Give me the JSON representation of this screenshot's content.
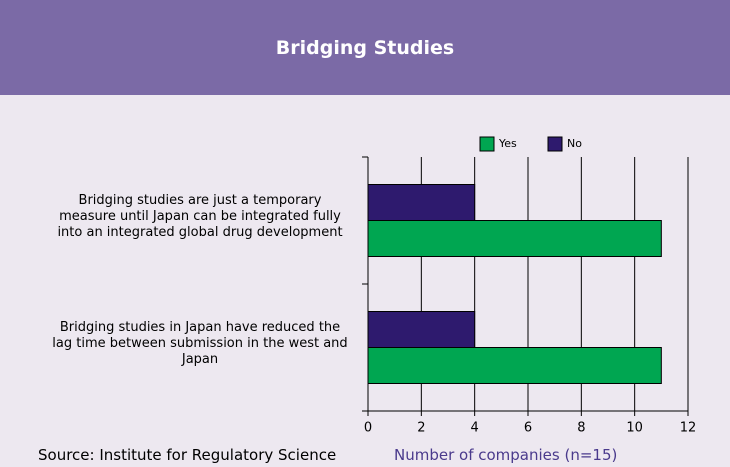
{
  "chart_data": {
    "type": "bar",
    "orientation": "horizontal",
    "title": "Bridging Studies",
    "categories": [
      "Bridging studies are just a temporary measure until Japan can be integrated fully into an integrated global drug development",
      "Bridging studies in Japan have reduced the lag time between submission in the west and Japan"
    ],
    "series": [
      {
        "name": "Yes",
        "color": "#00a651",
        "values": [
          11,
          11
        ]
      },
      {
        "name": "No",
        "color": "#2e1a6e",
        "values": [
          4,
          4
        ]
      }
    ],
    "xlim": [
      0,
      12
    ],
    "xticks": [
      0,
      2,
      4,
      6,
      8,
      10,
      12
    ],
    "grid": true,
    "x_label": "Number of companies (n=15)",
    "source": "Source: Institute for Regulatory Science"
  }
}
